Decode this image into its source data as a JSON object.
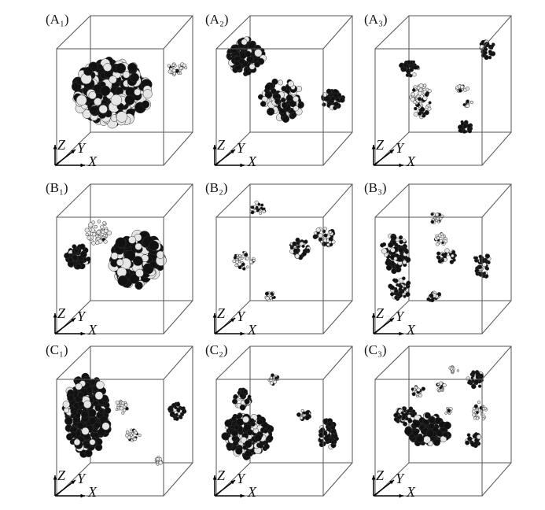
{
  "panels": [
    {
      "label": "(A₁)"
    },
    {
      "label": "(A₂)"
    },
    {
      "label": "(A₃)"
    },
    {
      "label": "(B₁)"
    },
    {
      "label": "(B₂)"
    },
    {
      "label": "(B₃)"
    },
    {
      "label": "(C₁)"
    },
    {
      "label": "(C₂)"
    },
    {
      "label": "(C₃)"
    }
  ],
  "axes": {
    "x": "X",
    "y": "Y",
    "z": "Z"
  }
}
